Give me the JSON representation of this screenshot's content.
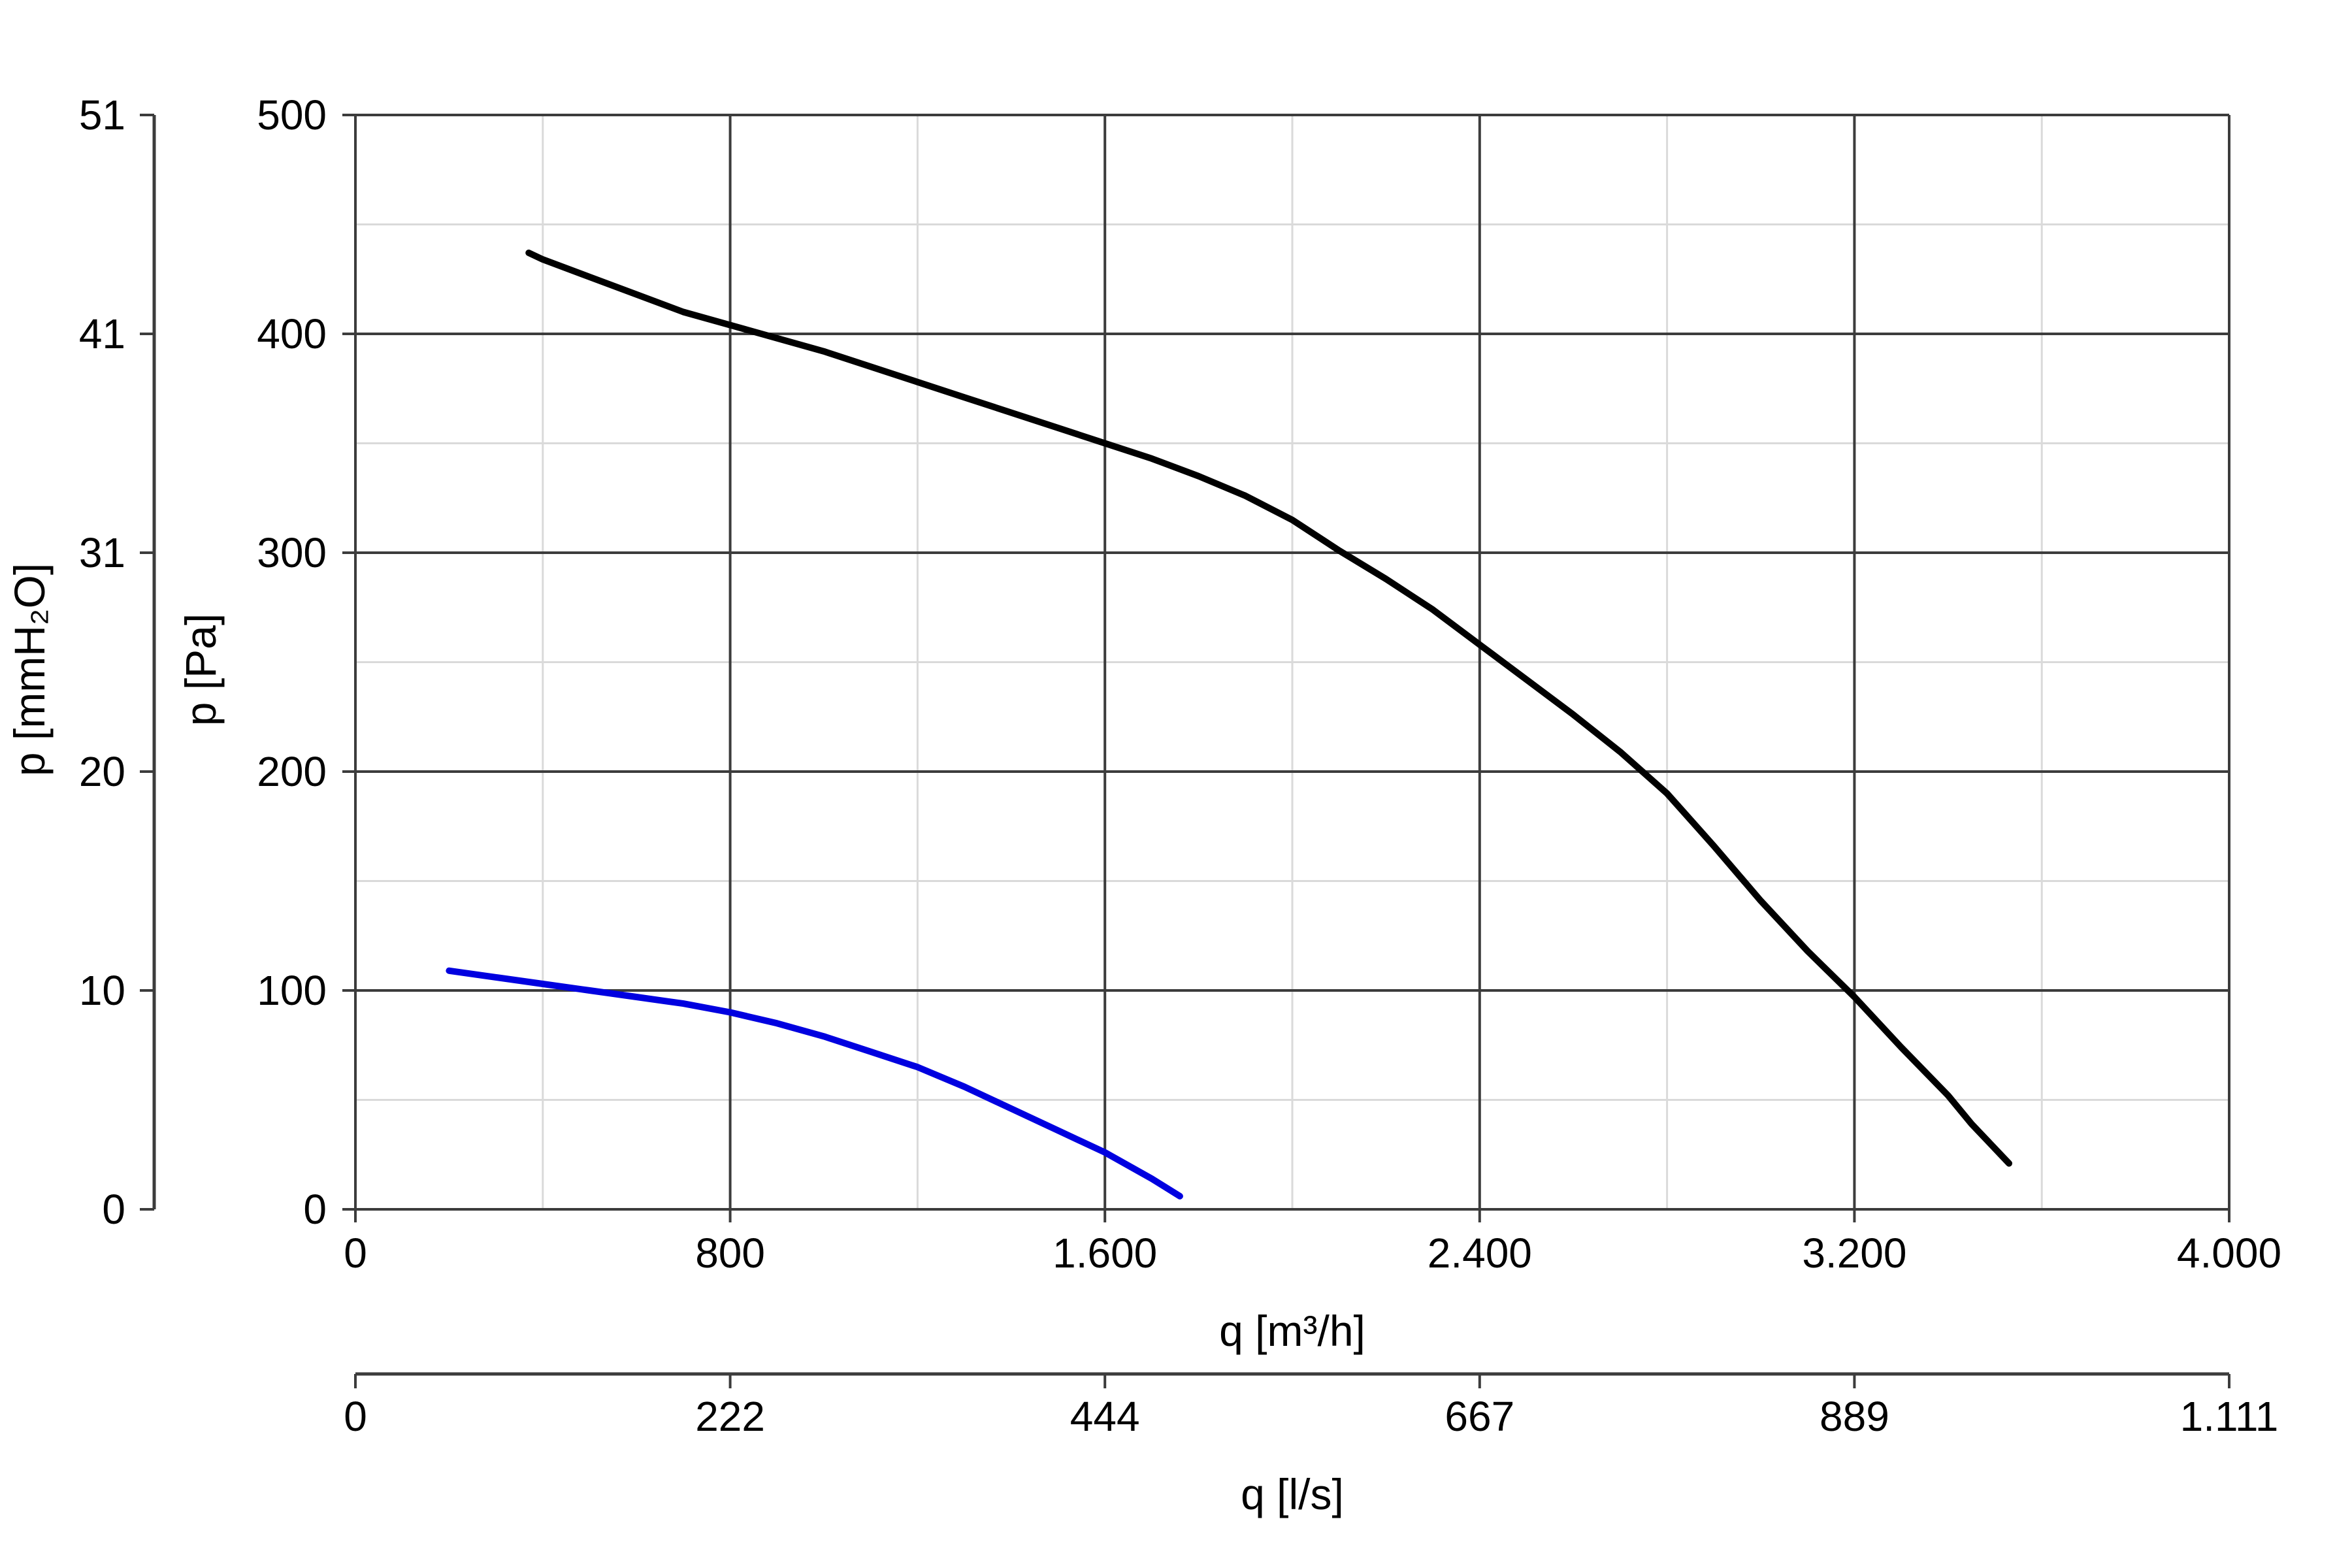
{
  "chart_data": {
    "type": "line",
    "grid": true,
    "legend": "none",
    "x_primary": {
      "label": "q [m³/h]",
      "range": [
        0,
        4000
      ],
      "ticks": [
        0,
        800,
        1600,
        2400,
        3200,
        4000
      ],
      "tick_labels": [
        "0",
        "800",
        "1.600",
        "2.400",
        "3.200",
        "4.000"
      ]
    },
    "x_secondary": {
      "label": "q [l/s]",
      "tick_labels": [
        "0",
        "222",
        "444",
        "667",
        "889",
        "1.111"
      ]
    },
    "y_primary": {
      "label": "p [Pa]",
      "range": [
        0,
        500
      ],
      "ticks": [
        0,
        100,
        200,
        300,
        400,
        500
      ],
      "tick_labels": [
        "0",
        "100",
        "200",
        "300",
        "400",
        "500"
      ]
    },
    "y_secondary": {
      "label": "p [mmH₂O]",
      "tick_labels": [
        "0",
        "10",
        "20",
        "31",
        "41",
        "51"
      ]
    },
    "series": [
      {
        "color": "#000000",
        "points": [
          [
            370,
            437
          ],
          [
            400,
            434
          ],
          [
            500,
            426
          ],
          [
            600,
            418
          ],
          [
            700,
            410
          ],
          [
            800,
            404
          ],
          [
            900,
            398
          ],
          [
            1000,
            392
          ],
          [
            1100,
            385
          ],
          [
            1200,
            378
          ],
          [
            1300,
            371
          ],
          [
            1400,
            364
          ],
          [
            1500,
            357
          ],
          [
            1600,
            350
          ],
          [
            1700,
            343
          ],
          [
            1800,
            335
          ],
          [
            1900,
            326
          ],
          [
            2000,
            315
          ],
          [
            2100,
            301
          ],
          [
            2200,
            288
          ],
          [
            2300,
            274
          ],
          [
            2400,
            258
          ],
          [
            2500,
            242
          ],
          [
            2600,
            226
          ],
          [
            2700,
            209
          ],
          [
            2800,
            190
          ],
          [
            2900,
            166
          ],
          [
            3000,
            141
          ],
          [
            3100,
            118
          ],
          [
            3200,
            97
          ],
          [
            3300,
            74
          ],
          [
            3400,
            52
          ],
          [
            3450,
            39
          ],
          [
            3530,
            21
          ]
        ]
      },
      {
        "color": "#0000e0",
        "points": [
          [
            200,
            109
          ],
          [
            300,
            106
          ],
          [
            400,
            103
          ],
          [
            500,
            100
          ],
          [
            600,
            97
          ],
          [
            700,
            94
          ],
          [
            800,
            90
          ],
          [
            900,
            85
          ],
          [
            1000,
            79
          ],
          [
            1100,
            72
          ],
          [
            1200,
            65
          ],
          [
            1300,
            56
          ],
          [
            1400,
            46
          ],
          [
            1500,
            36
          ],
          [
            1600,
            26
          ],
          [
            1700,
            14
          ],
          [
            1760,
            6
          ]
        ]
      }
    ]
  }
}
